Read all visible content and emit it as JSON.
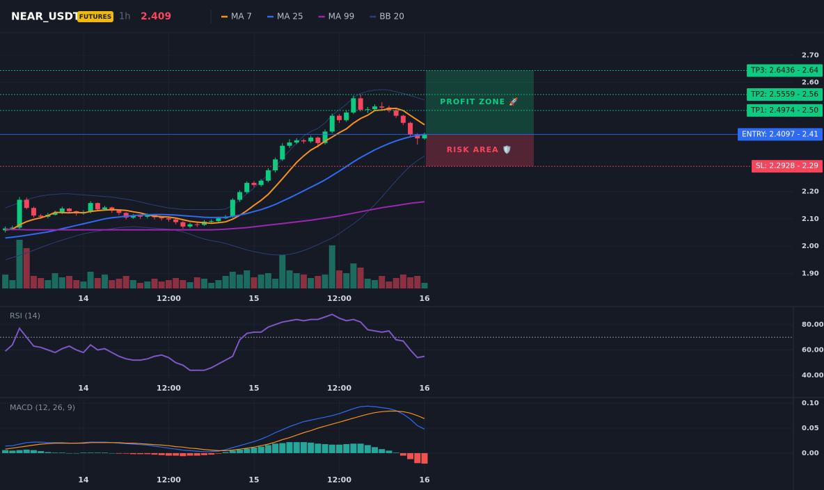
{
  "header": {
    "symbol": "NEAR_USDT",
    "badge": "FUTURES",
    "interval": "1h",
    "price": 2.409
  },
  "chart_data": [
    {
      "type": "candlestick",
      "up_color": "#0ecb81",
      "down_color": "#f6465d",
      "volume_up_color": "#1b6b60",
      "volume_down_color": "#8a3040",
      "ylim": [
        1.845,
        2.78
      ],
      "yticks": [
        {
          "value": 2.7,
          "label": "2.70"
        },
        {
          "value": 2.6,
          "label": "2.60"
        },
        {
          "value": 2.2,
          "label": "2.20"
        },
        {
          "value": 2.1,
          "label": "2.10"
        },
        {
          "value": 2.0,
          "label": "2.00"
        },
        {
          "value": 1.9,
          "label": "1.90"
        }
      ],
      "xticks": [
        {
          "value": 11,
          "label": "14"
        },
        {
          "value": 23,
          "label": "12:00"
        },
        {
          "value": 35,
          "label": "15"
        },
        {
          "value": 47,
          "label": "12:00"
        },
        {
          "value": 59,
          "label": "16"
        }
      ],
      "open": [
        2.058,
        2.065,
        2.068,
        2.17,
        2.14,
        2.112,
        2.108,
        2.115,
        2.122,
        2.138,
        2.128,
        2.12,
        2.125,
        2.158,
        2.135,
        2.142,
        2.13,
        2.122,
        2.105,
        2.112,
        2.108,
        2.114,
        2.106,
        2.102,
        2.098,
        2.088,
        2.072,
        2.08,
        2.078,
        2.09,
        2.092,
        2.102,
        2.108,
        2.17,
        2.198,
        2.232,
        2.224,
        2.24,
        2.278,
        2.318,
        2.368,
        2.38,
        2.388,
        2.384,
        2.398,
        2.378,
        2.42,
        2.478,
        2.462,
        2.49,
        2.542,
        2.5,
        2.502,
        2.512,
        2.508,
        2.498,
        2.478,
        2.452,
        2.41,
        2.395
      ],
      "high": [
        2.072,
        2.075,
        2.18,
        2.178,
        2.145,
        2.118,
        2.122,
        2.13,
        2.145,
        2.14,
        2.13,
        2.132,
        2.165,
        2.16,
        2.148,
        2.145,
        2.132,
        2.125,
        2.118,
        2.116,
        2.12,
        2.118,
        2.11,
        2.106,
        2.1,
        2.092,
        2.086,
        2.086,
        2.096,
        2.098,
        2.108,
        2.114,
        2.176,
        2.205,
        2.238,
        2.238,
        2.246,
        2.286,
        2.325,
        2.378,
        2.392,
        2.396,
        2.394,
        2.405,
        2.402,
        2.428,
        2.486,
        2.484,
        2.498,
        2.552,
        2.556,
        2.51,
        2.52,
        2.528,
        2.515,
        2.502,
        2.482,
        2.456,
        2.414,
        2.416
      ],
      "low": [
        2.05,
        2.058,
        2.062,
        2.135,
        2.105,
        2.1,
        2.102,
        2.112,
        2.118,
        2.12,
        2.112,
        2.115,
        2.12,
        2.128,
        2.13,
        2.122,
        2.114,
        2.098,
        2.1,
        2.1,
        2.102,
        2.098,
        2.094,
        2.09,
        2.08,
        2.064,
        2.066,
        2.07,
        2.074,
        2.084,
        2.088,
        2.1,
        2.104,
        2.162,
        2.192,
        2.216,
        2.218,
        2.234,
        2.27,
        2.312,
        2.36,
        2.374,
        2.376,
        2.378,
        2.362,
        2.372,
        2.414,
        2.452,
        2.456,
        2.484,
        2.494,
        2.488,
        2.496,
        2.5,
        2.49,
        2.47,
        2.444,
        2.402,
        2.372,
        2.39
      ],
      "close": [
        2.065,
        2.068,
        2.17,
        2.14,
        2.112,
        2.108,
        2.115,
        2.122,
        2.138,
        2.128,
        2.12,
        2.125,
        2.158,
        2.135,
        2.142,
        2.13,
        2.122,
        2.105,
        2.112,
        2.108,
        2.114,
        2.106,
        2.102,
        2.098,
        2.088,
        2.072,
        2.08,
        2.078,
        2.09,
        2.092,
        2.102,
        2.108,
        2.17,
        2.198,
        2.232,
        2.224,
        2.24,
        2.278,
        2.318,
        2.368,
        2.38,
        2.388,
        2.384,
        2.398,
        2.378,
        2.42,
        2.478,
        2.462,
        2.49,
        2.542,
        2.5,
        2.502,
        2.512,
        2.508,
        2.498,
        2.478,
        2.452,
        2.41,
        2.395,
        2.409
      ],
      "volume": [
        20,
        12,
        70,
        58,
        18,
        15,
        12,
        22,
        16,
        18,
        12,
        10,
        24,
        15,
        20,
        12,
        14,
        18,
        12,
        8,
        10,
        14,
        10,
        12,
        15,
        12,
        9,
        16,
        14,
        8,
        12,
        18,
        24,
        20,
        26,
        16,
        20,
        22,
        14,
        48,
        26,
        22,
        20,
        15,
        18,
        20,
        62,
        26,
        22,
        36,
        30,
        14,
        12,
        18,
        10,
        15,
        20,
        16,
        18,
        8
      ],
      "series": [
        {
          "name": "MA 7",
          "color": "#f7931a",
          "values": [
            2.06,
            2.062,
            2.078,
            2.09,
            2.098,
            2.104,
            2.112,
            2.124,
            2.123,
            2.122,
            2.124,
            2.122,
            2.127,
            2.13,
            2.132,
            2.134,
            2.133,
            2.131,
            2.126,
            2.122,
            2.115,
            2.11,
            2.108,
            2.107,
            2.103,
            2.097,
            2.091,
            2.088,
            2.086,
            2.084,
            2.086,
            2.089,
            2.099,
            2.113,
            2.13,
            2.15,
            2.168,
            2.19,
            2.218,
            2.247,
            2.277,
            2.307,
            2.331,
            2.352,
            2.367,
            2.385,
            2.4,
            2.416,
            2.43,
            2.451,
            2.468,
            2.48,
            2.497,
            2.499,
            2.504,
            2.505,
            2.497,
            2.479,
            2.462,
            2.445
          ]
        },
        {
          "name": "MA 25",
          "color": "#2f6bf2",
          "values": [
            2.03,
            2.033,
            2.036,
            2.04,
            2.044,
            2.048,
            2.052,
            2.058,
            2.064,
            2.07,
            2.076,
            2.082,
            2.088,
            2.094,
            2.1,
            2.104,
            2.107,
            2.11,
            2.112,
            2.114,
            2.115,
            2.116,
            2.116,
            2.115,
            2.114,
            2.112,
            2.11,
            2.108,
            2.106,
            2.105,
            2.105,
            2.106,
            2.109,
            2.114,
            2.12,
            2.127,
            2.134,
            2.143,
            2.153,
            2.165,
            2.177,
            2.19,
            2.203,
            2.216,
            2.229,
            2.243,
            2.259,
            2.275,
            2.292,
            2.309,
            2.325,
            2.339,
            2.353,
            2.365,
            2.376,
            2.386,
            2.394,
            2.401,
            2.406,
            2.41
          ]
        },
        {
          "name": "MA 99",
          "color": "#9c27b0",
          "values": [
            2.062,
            2.061,
            2.061,
            2.06,
            2.06,
            2.06,
            2.06,
            2.06,
            2.06,
            2.06,
            2.06,
            2.06,
            2.06,
            2.06,
            2.06,
            2.06,
            2.06,
            2.06,
            2.06,
            2.06,
            2.06,
            2.06,
            2.06,
            2.06,
            2.06,
            2.06,
            2.06,
            2.06,
            2.06,
            2.06,
            2.061,
            2.062,
            2.064,
            2.066,
            2.068,
            2.071,
            2.074,
            2.077,
            2.08,
            2.083,
            2.086,
            2.089,
            2.092,
            2.095,
            2.099,
            2.103,
            2.107,
            2.111,
            2.116,
            2.121,
            2.126,
            2.131,
            2.136,
            2.141,
            2.145,
            2.149,
            2.153,
            2.157,
            2.16,
            2.163
          ]
        },
        {
          "name": "BB 20",
          "color": "#2a3f73",
          "upper": [
            2.14,
            2.15,
            2.16,
            2.17,
            2.178,
            2.184,
            2.188,
            2.19,
            2.192,
            2.192,
            2.19,
            2.188,
            2.186,
            2.184,
            2.182,
            2.18,
            2.176,
            2.172,
            2.168,
            2.162,
            2.156,
            2.15,
            2.145,
            2.14,
            2.137,
            2.135,
            2.134,
            2.134,
            2.134,
            2.134,
            2.134,
            2.136,
            2.15,
            2.17,
            2.192,
            2.214,
            2.238,
            2.262,
            2.29,
            2.322,
            2.35,
            2.378,
            2.404,
            2.42,
            2.432,
            2.452,
            2.48,
            2.5,
            2.52,
            2.545,
            2.56,
            2.568,
            2.572,
            2.574,
            2.572,
            2.566,
            2.56,
            2.552,
            2.544,
            2.536
          ],
          "lower": [
            1.95,
            1.958,
            1.966,
            1.975,
            1.985,
            1.995,
            2.005,
            2.014,
            2.022,
            2.03,
            2.038,
            2.045,
            2.05,
            2.055,
            2.06,
            2.064,
            2.068,
            2.07,
            2.071,
            2.07,
            2.068,
            2.066,
            2.064,
            2.062,
            2.058,
            2.052,
            2.044,
            2.034,
            2.026,
            2.02,
            2.016,
            2.01,
            2.002,
            1.994,
            1.986,
            1.98,
            1.975,
            1.97,
            1.968,
            1.968,
            1.97,
            1.976,
            1.984,
            1.994,
            2.006,
            2.018,
            2.03,
            2.046,
            2.064,
            2.082,
            2.102,
            2.126,
            2.152,
            2.18,
            2.21,
            2.24,
            2.268,
            2.294,
            2.314,
            2.33
          ]
        }
      ],
      "levels": [
        {
          "value": 2.6436,
          "label": "TP3: 2.6436 - 2.64",
          "color": "#0ecb81",
          "label_color": "#0b0e11",
          "line_style": "dotted"
        },
        {
          "value": 2.5559,
          "label": "TP2: 2.5559 - 2.56",
          "color": "#0ecb81",
          "label_color": "#0b0e11",
          "line_style": "dotted"
        },
        {
          "value": 2.4974,
          "label": "TP1: 2.4974 - 2.50",
          "color": "#0ecb81",
          "label_color": "#0b0e11",
          "line_style": "dotted"
        },
        {
          "value": 2.4097,
          "label": "ENTRY: 2.4097 - 2.41",
          "color": "#2f6bf2",
          "label_color": "#ffffff",
          "line_style": "solid"
        },
        {
          "value": 2.2928,
          "label": "SL: 2.2928 - 2.29",
          "color": "#f6465d",
          "label_color": "#ffffff",
          "line_style": "dotted"
        }
      ],
      "zones": [
        {
          "label": "PROFIT ZONE 🚀",
          "color": "rgba(14,203,129,0.22)",
          "text_color": "#0ecb81"
        },
        {
          "label": "RISK AREA 🛡️",
          "color": "rgba(246,70,93,0.28)",
          "text_color": "#f6465d"
        }
      ]
    },
    {
      "type": "line",
      "title": "RSI (14)",
      "color": "#7e57c2",
      "ylim": [
        37.3,
        92
      ],
      "reference_line": 70,
      "yticks": [
        {
          "value": 80,
          "label": "80.00"
        },
        {
          "value": 60,
          "label": "60.00"
        },
        {
          "value": 40,
          "label": "40.00"
        }
      ],
      "values": [
        59,
        64,
        77,
        70,
        63,
        62,
        60,
        58,
        61,
        63,
        60,
        58,
        64,
        60,
        61,
        58,
        55,
        53,
        52,
        52,
        53,
        55,
        56,
        54,
        50,
        48,
        44,
        44,
        44,
        46,
        49,
        52,
        55,
        68,
        73,
        74,
        74,
        78,
        80,
        82,
        83,
        84,
        83,
        84,
        84,
        86,
        88,
        85,
        83,
        84,
        82,
        76,
        75,
        74,
        75,
        68,
        67,
        60,
        54,
        55
      ]
    },
    {
      "type": "macd",
      "title": "MACD (12, 26, 9)",
      "ylim": [
        -0.039,
        0.107
      ],
      "yticks": [
        {
          "value": 0.1,
          "label": "0.10"
        },
        {
          "value": 0.05,
          "label": "0.05"
        },
        {
          "value": 0,
          "label": "0.00"
        }
      ],
      "series": [
        {
          "color": "#2f6bf2",
          "values": [
            0.014,
            0.015,
            0.018,
            0.021,
            0.022,
            0.022,
            0.021,
            0.021,
            0.021,
            0.02,
            0.02,
            0.021,
            0.022,
            0.022,
            0.022,
            0.021,
            0.02,
            0.019,
            0.018,
            0.017,
            0.016,
            0.014,
            0.012,
            0.01,
            0.008,
            0.006,
            0.005,
            0.004,
            0.003,
            0.003,
            0.004,
            0.007,
            0.011,
            0.015,
            0.019,
            0.023,
            0.028,
            0.034,
            0.041,
            0.047,
            0.053,
            0.058,
            0.063,
            0.066,
            0.069,
            0.072,
            0.075,
            0.079,
            0.084,
            0.089,
            0.093,
            0.094,
            0.093,
            0.091,
            0.089,
            0.085,
            0.078,
            0.068,
            0.055,
            0.048
          ]
        },
        {
          "color": "#f7931a",
          "values": [
            0.008,
            0.01,
            0.012,
            0.014,
            0.016,
            0.018,
            0.019,
            0.02,
            0.02,
            0.02,
            0.02,
            0.02,
            0.021,
            0.021,
            0.021,
            0.021,
            0.021,
            0.02,
            0.02,
            0.019,
            0.018,
            0.017,
            0.016,
            0.015,
            0.013,
            0.012,
            0.01,
            0.009,
            0.007,
            0.006,
            0.005,
            0.005,
            0.006,
            0.008,
            0.01,
            0.012,
            0.015,
            0.018,
            0.022,
            0.027,
            0.031,
            0.036,
            0.041,
            0.045,
            0.05,
            0.054,
            0.058,
            0.062,
            0.066,
            0.07,
            0.074,
            0.078,
            0.081,
            0.083,
            0.084,
            0.084,
            0.083,
            0.08,
            0.075,
            0.069
          ]
        }
      ],
      "histogram": {
        "up_color": "#26a69a",
        "down_color": "#ef5350",
        "values": [
          0.006,
          0.005,
          0.006,
          0.007,
          0.006,
          0.004,
          0.002,
          0.001,
          0.001,
          0.0,
          0.0,
          0.001,
          0.001,
          0.001,
          0.001,
          0.0,
          -0.001,
          -0.001,
          -0.002,
          -0.002,
          -0.002,
          -0.003,
          -0.004,
          -0.005,
          -0.005,
          -0.006,
          -0.005,
          -0.005,
          -0.004,
          -0.003,
          -0.001,
          0.002,
          0.005,
          0.007,
          0.009,
          0.011,
          0.013,
          0.016,
          0.019,
          0.02,
          0.022,
          0.022,
          0.022,
          0.021,
          0.019,
          0.018,
          0.017,
          0.017,
          0.018,
          0.019,
          0.019,
          0.016,
          0.012,
          0.008,
          0.005,
          0.001,
          -0.005,
          -0.012,
          -0.02,
          -0.021
        ]
      }
    }
  ]
}
